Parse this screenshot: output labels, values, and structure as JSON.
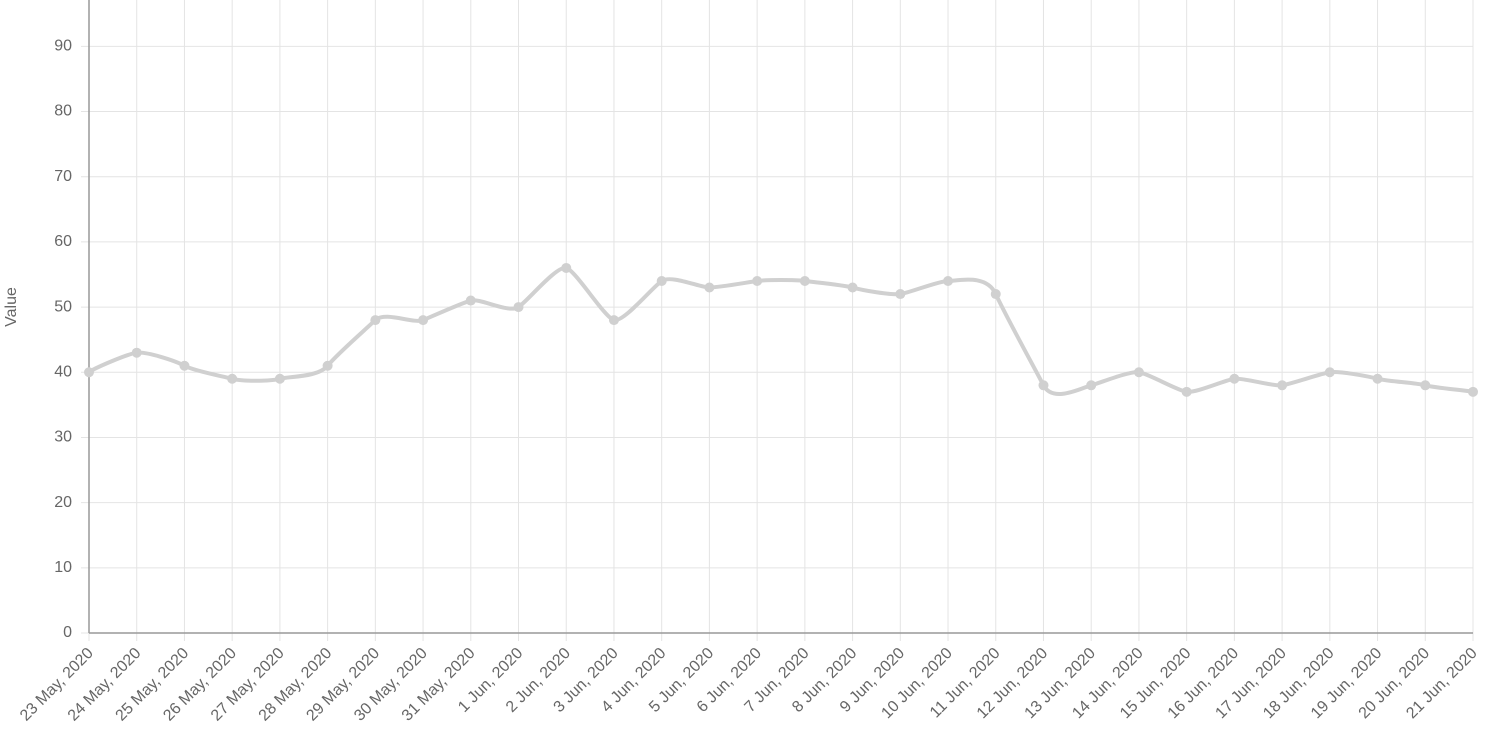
{
  "chart_data": {
    "type": "line",
    "y_label": "Value",
    "categories": [
      "23 May, 2020",
      "24 May, 2020",
      "25 May, 2020",
      "26 May, 2020",
      "27 May, 2020",
      "28 May, 2020",
      "29 May, 2020",
      "30 May, 2020",
      "31 May, 2020",
      "1 Jun, 2020",
      "2 Jun, 2020",
      "3 Jun, 2020",
      "4 Jun, 2020",
      "5 Jun, 2020",
      "6 Jun, 2020",
      "7 Jun, 2020",
      "8 Jun, 2020",
      "9 Jun, 2020",
      "10 Jun, 2020",
      "11 Jun, 2020",
      "12 Jun, 2020",
      "13 Jun, 2020",
      "14 Jun, 2020",
      "15 Jun, 2020",
      "16 Jun, 2020",
      "17 Jun, 2020",
      "18 Jun, 2020",
      "19 Jun, 2020",
      "20 Jun, 2020",
      "21 Jun, 2020"
    ],
    "values": [
      40,
      43,
      41,
      39,
      39,
      41,
      48,
      48,
      51,
      50,
      56,
      48,
      54,
      53,
      54,
      54,
      53,
      52,
      54,
      52,
      38,
      38,
      40,
      37,
      39,
      38,
      40,
      39,
      38,
      37
    ],
    "color": "#d0d0d0",
    "ylim": [
      0,
      97
    ],
    "yticks": [
      0,
      10,
      20,
      30,
      40,
      50,
      60,
      70,
      80,
      90
    ],
    "grid": true
  }
}
